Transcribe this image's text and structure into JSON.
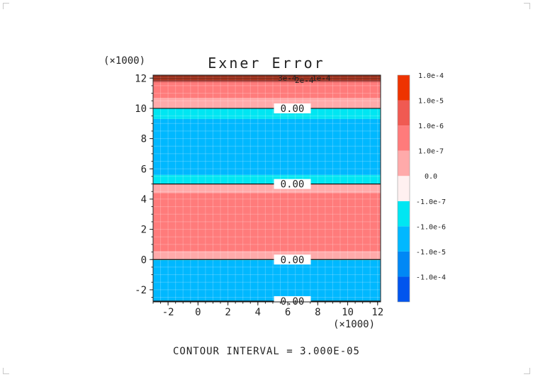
{
  "chart_data": {
    "type": "heatmap",
    "title": "Exner Error",
    "x_multiplier_label": "(×1000)",
    "y_multiplier_label": "(×1000)",
    "footer": "CONTOUR INTERVAL = 3.000E-05",
    "xlim": [
      -3,
      12.2
    ],
    "ylim": [
      -2.8,
      12.2
    ],
    "x_ticks": [
      -2,
      0,
      2,
      4,
      6,
      8,
      10,
      12
    ],
    "y_ticks": [
      -2,
      0,
      2,
      4,
      6,
      8,
      10,
      12
    ],
    "x_tick_labels": [
      "-2",
      "0",
      "2",
      "4",
      "6",
      "8",
      "10",
      "12"
    ],
    "y_tick_labels": [
      "-2",
      "0",
      "2",
      "4",
      "6",
      "8",
      "10",
      "12"
    ],
    "grid": true,
    "colorbar": {
      "placement": "right",
      "colors": [
        "#0055ee",
        "#0088f5",
        "#00b8ff",
        "#00e6f2",
        "#fff0f0",
        "#ffaaaa",
        "#ff7b7b",
        "#f05a52",
        "#ee3300"
      ],
      "labels": [
        "-1.0e-4",
        "-1.0e-5",
        "-1.0e-6",
        "-1.0e-7",
        "0.0",
        "1.0e-7",
        "1.0e-6",
        "1.0e-5",
        "1.0e-4"
      ]
    },
    "bands": [
      {
        "y0": -2.8,
        "y1": -0.05,
        "color": "#00b8ff"
      },
      {
        "y0": -0.05,
        "y1": 0.0,
        "color": "#00e6f2"
      },
      {
        "y0": 0.0,
        "y1": 0.55,
        "color": "#ffaaaa"
      },
      {
        "y0": 0.55,
        "y1": 4.4,
        "color": "#ff7b7b"
      },
      {
        "y0": 4.4,
        "y1": 5.0,
        "color": "#ffaaaa"
      },
      {
        "y0": 5.0,
        "y1": 5.6,
        "color": "#00e6f2"
      },
      {
        "y0": 5.6,
        "y1": 9.3,
        "color": "#00b8ff"
      },
      {
        "y0": 9.3,
        "y1": 10.0,
        "color": "#00e6f2"
      },
      {
        "y0": 10.0,
        "y1": 10.7,
        "color": "#ffaaaa"
      },
      {
        "y0": 10.7,
        "y1": 11.85,
        "color": "#ff7b7b"
      },
      {
        "y0": 11.85,
        "y1": 12.2,
        "color": "#d9482c"
      }
    ],
    "contour_lines": [
      {
        "y": 0.0,
        "label": "0.00"
      },
      {
        "y": 5.0,
        "label": "0.00"
      },
      {
        "y": 10.0,
        "label": "0.00"
      },
      {
        "y": -2.75,
        "label": "0.00"
      }
    ],
    "top_labels": [
      "3e-4",
      "2e-4",
      "1e-4"
    ]
  }
}
